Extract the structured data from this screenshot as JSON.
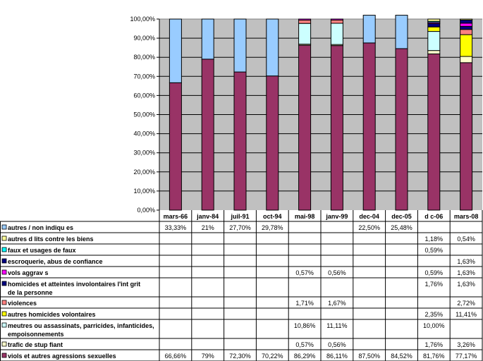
{
  "chart_data": {
    "type": "bar",
    "stacked": true,
    "title": "",
    "xlabel": "",
    "ylabel": "",
    "ylim": [
      0,
      100
    ],
    "ytick_labels": [
      "0,00%",
      "10,00%",
      "20,00%",
      "30,00%",
      "40,00%",
      "50,00%",
      "60,00%",
      "70,00%",
      "80,00%",
      "90,00%",
      "100,00%"
    ],
    "grid": true,
    "legend": "data-table-below",
    "colors": {
      "plot_background": "#c0c0c0",
      "gridline": "#000000"
    },
    "categories": [
      "mars-66",
      "janv-84",
      "juil-91",
      "oct-94",
      "mai-98",
      "janv-99",
      "dec-04",
      "dec-05",
      "d  c-06",
      "mars-08"
    ],
    "series": [
      {
        "name": "viols et autres agressions sexuelles",
        "color": "#993366",
        "values": [
          66.66,
          79,
          72.3,
          70.22,
          86.29,
          86.11,
          87.5,
          84.52,
          81.76,
          77.17
        ],
        "labels": [
          "66,66%",
          "79%",
          "72,30%",
          "70,22%",
          "86,29%",
          "86,11%",
          "87,50%",
          "84,52%",
          "81,76%",
          "77,17%"
        ]
      },
      {
        "name": "trafic de stup  fiant",
        "color": "#ffffcc",
        "values": [
          null,
          null,
          null,
          null,
          0.57,
          0.56,
          null,
          null,
          1.76,
          3.26
        ],
        "labels": [
          "",
          "",
          "",
          "",
          "0,57%",
          "0,56%",
          "",
          "",
          "1,76%",
          "3,26%"
        ]
      },
      {
        "name": "meutres ou assassinats, parricides, infanticides, empoisonnements",
        "color": "#ccffff",
        "values": [
          null,
          null,
          null,
          null,
          10.86,
          11.11,
          null,
          null,
          10.0,
          null
        ],
        "labels": [
          "",
          "",
          "",
          "",
          "10,86%",
          "11,11%",
          "",
          "",
          "10,00%",
          ""
        ]
      },
      {
        "name": "autres homicides volontaires",
        "color": "#ffff00",
        "values": [
          null,
          null,
          null,
          null,
          null,
          null,
          null,
          null,
          2.35,
          11.41
        ],
        "labels": [
          "",
          "",
          "",
          "",
          "",
          "",
          "",
          "",
          "2,35%",
          "11,41%"
        ]
      },
      {
        "name": "violences",
        "color": "#ff8080",
        "values": [
          null,
          null,
          null,
          null,
          1.71,
          1.67,
          null,
          null,
          null,
          2.72
        ],
        "labels": [
          "",
          "",
          "",
          "",
          "1,71%",
          "1,67%",
          "",
          "",
          "",
          "2,72%"
        ]
      },
      {
        "name": "homicides et atteintes involontaires   l'int  grit  de la personne",
        "color": "#000080",
        "values": [
          null,
          null,
          null,
          null,
          null,
          null,
          null,
          null,
          1.76,
          1.63
        ],
        "labels": [
          "",
          "",
          "",
          "",
          "",
          "",
          "",
          "",
          "1,76%",
          "1,63%"
        ]
      },
      {
        "name": "vols aggrav  s",
        "color": "#ff00ff",
        "values": [
          null,
          null,
          null,
          null,
          0.57,
          0.56,
          null,
          null,
          0.59,
          1.63
        ],
        "labels": [
          "",
          "",
          "",
          "",
          "0,57%",
          "0,56%",
          "",
          "",
          "0,59%",
          "1,63%"
        ]
      },
      {
        "name": "escroquerie, abus de confiance",
        "color": "#000080",
        "values": [
          null,
          null,
          null,
          null,
          null,
          null,
          null,
          null,
          null,
          1.63
        ],
        "labels": [
          "",
          "",
          "",
          "",
          "",
          "",
          "",
          "",
          "",
          "1,63%"
        ]
      },
      {
        "name": "faux et usages de faux",
        "color": "#00ffff",
        "values": [
          null,
          null,
          null,
          null,
          null,
          null,
          null,
          null,
          0.59,
          null
        ],
        "labels": [
          "",
          "",
          "",
          "",
          "",
          "",
          "",
          "",
          "0,59%",
          ""
        ]
      },
      {
        "name": "autres d  lits contre les biens",
        "color": "#ffff99",
        "values": [
          null,
          null,
          null,
          null,
          null,
          null,
          null,
          null,
          1.18,
          0.54
        ],
        "labels": [
          "",
          "",
          "",
          "",
          "",
          "",
          "",
          "",
          "1,18%",
          "0,54%"
        ]
      },
      {
        "name": "autres / non indiqu  es",
        "color": "#99ccff",
        "values": [
          33.33,
          21,
          27.7,
          29.78,
          null,
          null,
          22.5,
          25.48,
          null,
          null
        ],
        "labels": [
          "33,33%",
          "21%",
          "27,70%",
          "29,78%",
          "",
          "",
          "22,50%",
          "25,48%",
          "",
          ""
        ]
      }
    ],
    "table_row_order": [
      {
        "series": 10,
        "label_lines": [
          "autres / non indiqu  es"
        ]
      },
      {
        "series": 9,
        "label_lines": [
          "autres d  lits contre les biens"
        ]
      },
      {
        "series": 8,
        "label_lines": [
          "faux et usages de faux"
        ]
      },
      {
        "series": 7,
        "label_lines": [
          "escroquerie, abus de confiance"
        ]
      },
      {
        "series": 6,
        "label_lines": [
          "vols aggrav  s"
        ]
      },
      {
        "series": 5,
        "label_lines": [
          "homicides et atteintes involontaires    l'int  grit",
          "de la personne"
        ]
      },
      {
        "series": 4,
        "label_lines": [
          "violences"
        ]
      },
      {
        "series": 3,
        "label_lines": [
          "autres homicides volontaires"
        ]
      },
      {
        "series": 2,
        "label_lines": [
          "meutres ou assassinats, parricides, infanticides,",
          "empoisonnements"
        ]
      },
      {
        "series": 1,
        "label_lines": [
          "trafic de stup  fiant"
        ]
      },
      {
        "series": 0,
        "label_lines": [
          "viols et autres agressions sexuelles"
        ]
      }
    ]
  }
}
